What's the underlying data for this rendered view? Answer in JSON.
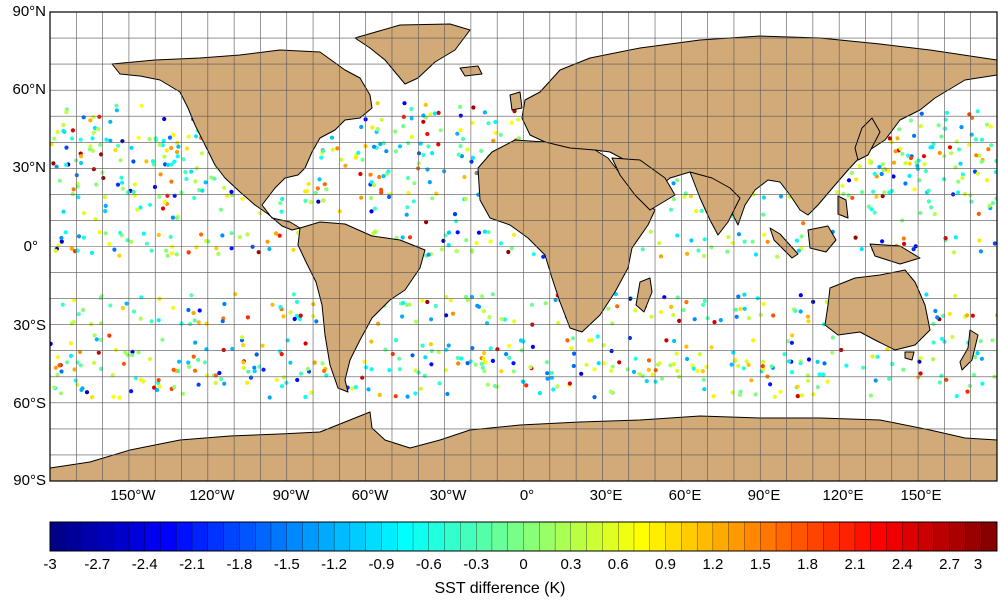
{
  "map": {
    "latitude_labels": [
      "90°N",
      "60°N",
      "30°N",
      "0°",
      "30°S",
      "60°S",
      "90°S"
    ],
    "longitude_labels": [
      "150°W",
      "120°W",
      "90°W",
      "60°W",
      "30°W",
      "0°",
      "30°E",
      "60°E",
      "90°E",
      "120°E",
      "150°E"
    ],
    "land_color": "#d2aa78",
    "ocean_color": "#ffffff",
    "grid": true
  },
  "colorbar": {
    "title": "SST difference (K)",
    "min": -3,
    "max": 3,
    "step": 0.1,
    "tick_labels": [
      "-3",
      "-2.7",
      "-2.4",
      "-2.1",
      "-1.8",
      "-1.5",
      "-1.2",
      "-0.9",
      "-0.6",
      "-0.3",
      "0",
      "0.3",
      "0.6",
      "0.9",
      "1.2",
      "1.5",
      "1.8",
      "2.1",
      "2.4",
      "2.7",
      "3"
    ],
    "colormap": "jet"
  }
}
